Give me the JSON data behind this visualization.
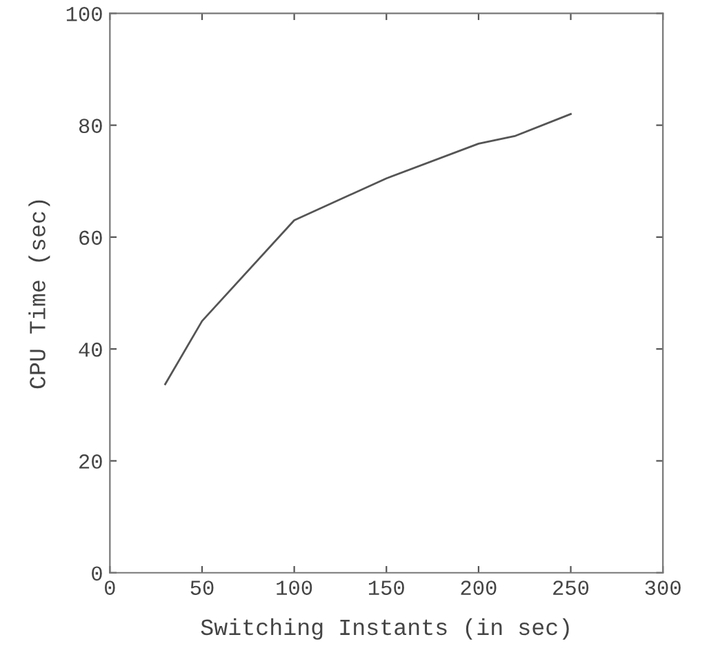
{
  "chart_data": {
    "type": "line",
    "xlabel": "Switching Instants (in sec)",
    "ylabel": "CPU Time (sec)",
    "x": [
      30,
      50,
      100,
      150,
      200,
      220,
      250
    ],
    "series": [
      {
        "color": "#555555",
        "values": [
          33.7,
          45,
          63,
          70.5,
          76.7,
          78.1,
          82
        ]
      }
    ],
    "xlim": [
      0,
      300
    ],
    "xticks": [
      0,
      50,
      100,
      150,
      200,
      250,
      300
    ],
    "ylim": [
      0,
      100
    ],
    "yticks": [
      0,
      20,
      40,
      60,
      80,
      100
    ],
    "grid": false,
    "legend": false,
    "marker": "none",
    "line_style": "solid"
  }
}
